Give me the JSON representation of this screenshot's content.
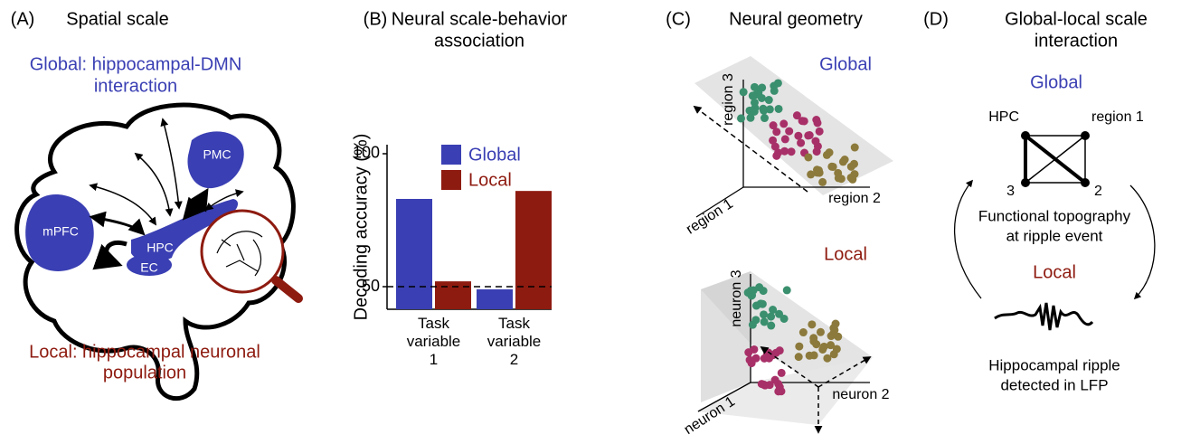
{
  "panels": [
    {
      "label": "(A)",
      "title": [
        "Spatial scale"
      ],
      "global_caption": [
        "Global: hippocampal-DMN",
        "interaction"
      ],
      "local_caption": [
        "Local: hippocampal neuronal",
        "population"
      ],
      "regions": [
        "mPFC",
        "PMC",
        "HPC",
        "EC"
      ]
    },
    {
      "label": "(B)",
      "title": [
        "Neural scale-behavior",
        "association"
      ]
    },
    {
      "label": "(C)",
      "title": [
        "Neural geometry"
      ],
      "global": "Global",
      "global_axes": [
        "region 1",
        "region 2",
        "region 3"
      ],
      "local": "Local",
      "local_axes": [
        "neuron 1",
        "neuron 2",
        "neuron 3"
      ]
    },
    {
      "label": "(D)",
      "title": [
        "Global-local scale",
        "interaction"
      ],
      "global": "Global",
      "nodes": [
        "HPC",
        "region 1",
        "3",
        "2"
      ],
      "topography_caption": [
        "Functional topography",
        "at ripple event"
      ],
      "local": "Local",
      "ripple_caption": [
        "Hippocampal ripple",
        "detected in LFP"
      ]
    }
  ],
  "chart_data": {
    "type": "bar",
    "ylabel": "Decoding accuracy (%)",
    "categories": [
      "Task variable 1",
      "Task variable 2"
    ],
    "series": [
      {
        "name": "Global",
        "color": "#3a3fb3",
        "values": [
          83,
          49
        ]
      },
      {
        "name": "Local",
        "color": "#8e1b10",
        "values": [
          52,
          86
        ]
      }
    ],
    "ylim": [
      41.5,
      103.4
    ],
    "yticks": [
      50,
      100
    ],
    "reference_line": 50
  }
}
